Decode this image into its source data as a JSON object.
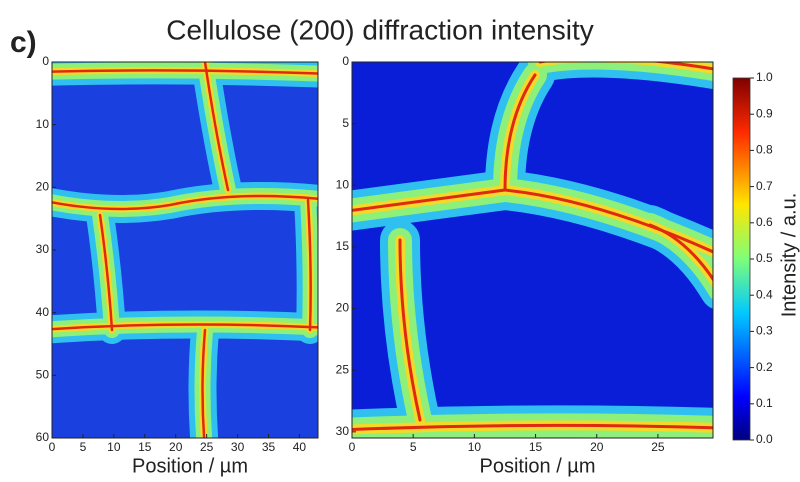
{
  "title": "Cellulose (200) diffraction intensity",
  "panel_label": "c)",
  "chart_data": [
    {
      "type": "heatmap",
      "xlabel": "Position / µm",
      "xlim": [
        0,
        43
      ],
      "xticks": [
        0,
        5,
        10,
        15,
        20,
        25,
        30,
        35,
        40
      ],
      "ylim": [
        0,
        60
      ],
      "yticks": [
        0,
        10,
        20,
        30,
        40,
        50,
        60
      ]
    },
    {
      "type": "heatmap",
      "xlabel": "Position / µm",
      "xlim": [
        0,
        29.5
      ],
      "xticks": [
        0,
        5,
        10,
        15,
        20,
        25
      ],
      "ylim": [
        0,
        30.5
      ],
      "yticks": [
        0,
        5,
        10,
        15,
        20,
        25,
        30
      ],
      "colorbar": {
        "label": "Intensity / a.u.",
        "lim": [
          0,
          1
        ],
        "ticks": [
          {
            "value": 0,
            "label": "0.0"
          },
          {
            "value": 0.1,
            "label": "0.1"
          },
          {
            "value": 0.2,
            "label": "0.2"
          },
          {
            "value": 0.3,
            "label": "0.3"
          },
          {
            "value": 0.4,
            "label": "0.4"
          },
          {
            "value": 0.5,
            "label": "0.5"
          },
          {
            "value": 0.6,
            "label": "0.6"
          },
          {
            "value": 0.7,
            "label": "0.7"
          },
          {
            "value": 0.8,
            "label": "0.8"
          },
          {
            "value": 0.9,
            "label": "0.9"
          },
          {
            "value": 1,
            "label": "1.0"
          }
        ]
      }
    }
  ]
}
